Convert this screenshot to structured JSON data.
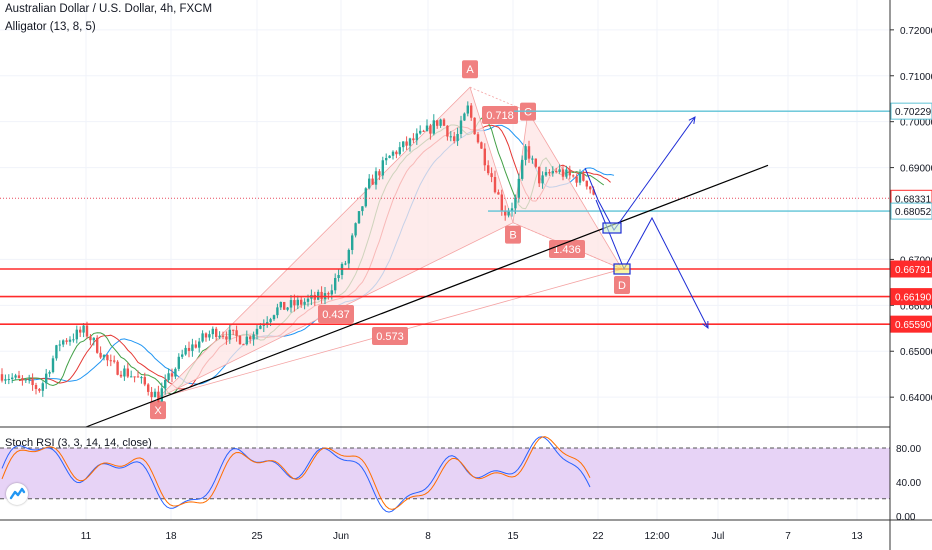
{
  "header": {
    "title": "Australian Dollar / U.S. Dollar, 4h, FXCM",
    "indicator": "Alligator (13, 8, 5)"
  },
  "oscillator": {
    "title": "Stoch RSI (3, 3, 14, 14, close)",
    "axis_labels": [
      "80.00",
      "40.00",
      "0.00"
    ]
  },
  "colors": {
    "pattern_fill": "#fde4e4",
    "pattern_label": "#f08080",
    "horizontal_red": "#ff2b2b",
    "horizontal_cyan": "#5fc3d6",
    "projection": "#1e2dd6",
    "trendline": "#000000",
    "stoch_k": "#2962ff",
    "stoch_d": "#ff6d00",
    "stoch_band": "#e7d3f6",
    "bull_candle": "#26a69a",
    "bear_candle": "#ef5350"
  },
  "chart_data": {
    "type": "candlestick",
    "symbol": "Australian Dollar / U.S. Dollar",
    "timeframe": "4h",
    "source": "FXCM",
    "x_tick_labels": [
      "11",
      "18",
      "25",
      "Jun",
      "8",
      "15",
      "22",
      "12:00",
      "Jul",
      "7",
      "13"
    ],
    "y_tick_labels": [
      "0.72000",
      "0.71000",
      "0.70000",
      "0.69000",
      "0.67000",
      "0.66000",
      "0.65000",
      "0.64000"
    ],
    "ylim": [
      0.6335,
      0.7265
    ],
    "price_levels": [
      {
        "label": "0.70229",
        "value": 0.70229,
        "kind": "cyan"
      },
      {
        "label": "0.68331",
        "value": 0.68331,
        "kind": "last-price"
      },
      {
        "label": "0.68052",
        "value": 0.68052,
        "kind": "cyan"
      },
      {
        "label": "0.66791",
        "value": 0.66791,
        "kind": "red"
      },
      {
        "label": "0.66190",
        "value": 0.6619,
        "kind": "red"
      },
      {
        "label": "0.65590",
        "value": 0.6559,
        "kind": "red"
      }
    ],
    "pattern": {
      "points": [
        {
          "label": "X",
          "value": 0.6398
        },
        {
          "label": "A",
          "value": 0.7075
        },
        {
          "label": "B",
          "value": 0.678
        },
        {
          "label": "C",
          "value": 0.7022
        },
        {
          "label": "D",
          "value": 0.6679
        }
      ],
      "ratios": [
        "0.718",
        "0.437",
        "1.436",
        "0.573"
      ]
    },
    "indicator": "Alligator (13, 8, 5)",
    "oscillator": {
      "name": "Stoch RSI (3, 3, 14, 14, close)",
      "ylim": [
        -5,
        100
      ],
      "bands": [
        80,
        20
      ]
    }
  }
}
